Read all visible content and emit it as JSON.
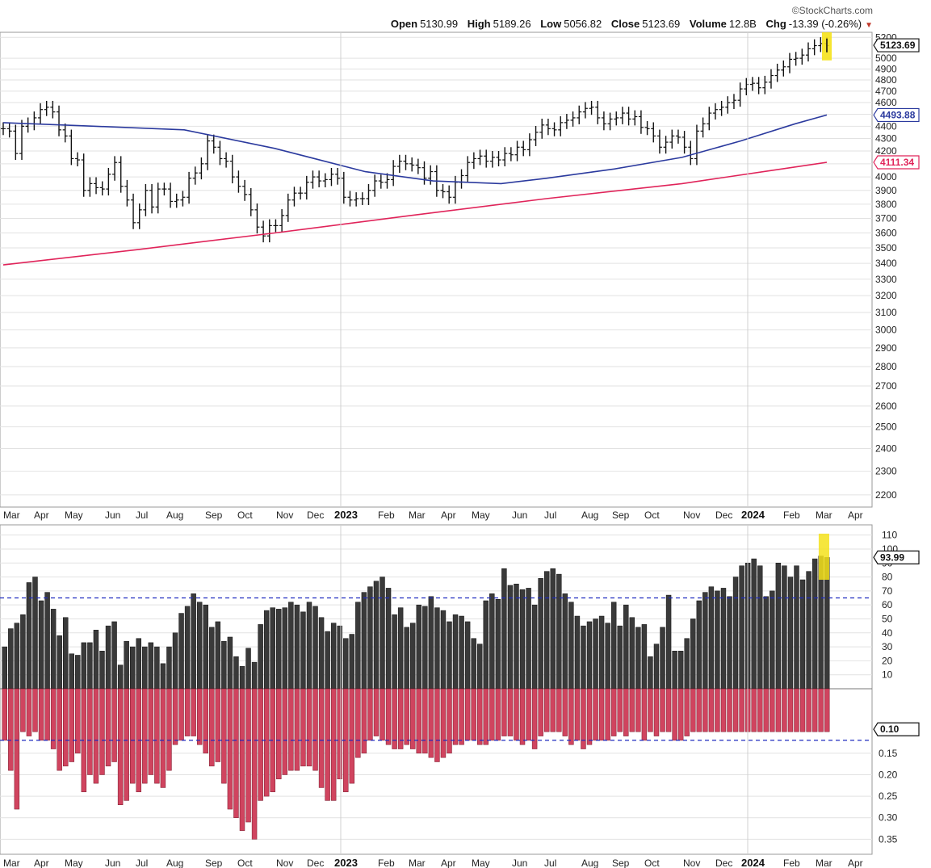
{
  "header": {
    "brand": "©StockCharts.com",
    "open_label": "Open",
    "open": "5130.99",
    "high_label": "High",
    "high": "5189.26",
    "low_label": "Low",
    "low": "5056.82",
    "close_label": "Close",
    "close": "5123.69",
    "volume_label": "Volume",
    "volume": "12.8B",
    "chg_label": "Chg",
    "chg": "-13.39 (-0.26%)"
  },
  "colors": {
    "bars": "#111111",
    "ma_blue": "#2b3a9e",
    "ma_red": "#e0245a",
    "up": "#3a3a3a",
    "down": "#d0445f",
    "highlight": "#f5e21b",
    "dashed": "#1f2bbf",
    "grid": "#e2e2e2"
  },
  "chart_data": [
    {
      "type": "line",
      "subtype": "ohlc-weekly",
      "title": "",
      "y_scale": "log",
      "ylim": [
        2150,
        5250
      ],
      "y_ticks": [
        2200,
        2300,
        2400,
        2500,
        2600,
        2700,
        2800,
        2900,
        3000,
        3100,
        3200,
        3300,
        3400,
        3500,
        3600,
        3700,
        3800,
        3900,
        4000,
        4100,
        4200,
        4300,
        4400,
        4500,
        4600,
        4700,
        4800,
        4900,
        5000,
        5200
      ],
      "price_close_weekly": [
        4380,
        4360,
        4180,
        4400,
        4420,
        4470,
        4540,
        4560,
        4520,
        4370,
        4320,
        4140,
        4130,
        3900,
        3950,
        3920,
        3910,
        4020,
        4110,
        3930,
        3830,
        3670,
        3760,
        3900,
        3780,
        3910,
        3910,
        3820,
        3830,
        3850,
        3990,
        4030,
        4100,
        4280,
        4230,
        4140,
        4120,
        4000,
        3930,
        3870,
        3760,
        3640,
        3580,
        3650,
        3650,
        3720,
        3830,
        3880,
        3880,
        3960,
        4000,
        3970,
        3980,
        4020,
        3990,
        3850,
        3830,
        3840,
        3840,
        3900,
        3970,
        3960,
        3980,
        4080,
        4120,
        4100,
        4090,
        4070,
        3990,
        4040,
        3900,
        3890,
        3850,
        3960,
        4010,
        4110,
        4140,
        4160,
        4120,
        4150,
        4130,
        4180,
        4170,
        4230,
        4210,
        4290,
        4350,
        4410,
        4380,
        4370,
        4430,
        4450,
        4470,
        4520,
        4550,
        4560,
        4470,
        4420,
        4460,
        4470,
        4510,
        4460,
        4480,
        4390,
        4380,
        4320,
        4230,
        4270,
        4320,
        4310,
        4230,
        4140,
        4360,
        4420,
        4510,
        4540,
        4560,
        4600,
        4620,
        4720,
        4760,
        4770,
        4730,
        4780,
        4840,
        4890,
        4920,
        4990,
        5000,
        5030,
        5090,
        5120,
        5140,
        5120
      ],
      "ma_50w_blue": {
        "name": "",
        "points": [
          [
            0,
            4430
          ],
          [
            20,
            4400
          ],
          [
            40,
            4370
          ],
          [
            60,
            4220
          ],
          [
            80,
            4040
          ],
          [
            95,
            3970
          ],
          [
            110,
            3950
          ],
          [
            120,
            3990
          ],
          [
            135,
            4060
          ],
          [
            150,
            4150
          ],
          [
            163,
            4280
          ],
          [
            175,
            4420
          ],
          [
            182,
            4493.88
          ]
        ]
      },
      "ma_200w_red": {
        "name": "",
        "points": [
          [
            0,
            3390
          ],
          [
            30,
            3490
          ],
          [
            60,
            3600
          ],
          [
            90,
            3720
          ],
          [
            120,
            3840
          ],
          [
            150,
            3950
          ],
          [
            170,
            4050
          ],
          [
            182,
            4111.34
          ]
        ]
      },
      "price_tags": {
        "close": "5123.69",
        "ma50": "4493.88",
        "ma200": "4111.34"
      }
    },
    {
      "type": "bar",
      "subtype": "up/down-ratio-indicator",
      "title": "",
      "ylim_top": [
        0,
        115
      ],
      "y_ticks_top": [
        10,
        20,
        30,
        40,
        50,
        60,
        70,
        80,
        90,
        100,
        110
      ],
      "y_ticks_bottom": [
        "0.15",
        "0.20",
        "0.25",
        "0.30",
        "0.35"
      ],
      "threshold_upper": 65,
      "threshold_lower": 0.12,
      "tags": {
        "upper": "93.99",
        "lower": "0.10"
      },
      "up_values": [
        30,
        43,
        47,
        53,
        76,
        80,
        63,
        69,
        57,
        38,
        51,
        25,
        24,
        33,
        33,
        42,
        27,
        45,
        48,
        17,
        34,
        30,
        36,
        30,
        33,
        30,
        18,
        30,
        40,
        54,
        59,
        68,
        62,
        60,
        44,
        48,
        34,
        37,
        23,
        16,
        29,
        19,
        46,
        56,
        58,
        57,
        58,
        62,
        60,
        55,
        62,
        59,
        51,
        41,
        47,
        45,
        36,
        39,
        62,
        69,
        73,
        77,
        80,
        72,
        53,
        58,
        44,
        47,
        60,
        59,
        66,
        58,
        56,
        48,
        53,
        52,
        48,
        36,
        32,
        63,
        68,
        64,
        86,
        74,
        75,
        71,
        72,
        60,
        79,
        84,
        86,
        82,
        68,
        62,
        52,
        45,
        48,
        50,
        52,
        47,
        62,
        45,
        60,
        51,
        44,
        46,
        23,
        32,
        44,
        67,
        27,
        27,
        36,
        50,
        63,
        69,
        73,
        70,
        72,
        66,
        80,
        88,
        90,
        93,
        88,
        66,
        70,
        90,
        88,
        80,
        88,
        78,
        84,
        93,
        95,
        93.99
      ],
      "down_values": [
        0.12,
        0.19,
        0.28,
        0.1,
        0.11,
        0.1,
        0.12,
        0.12,
        0.14,
        0.19,
        0.18,
        0.17,
        0.15,
        0.24,
        0.2,
        0.22,
        0.2,
        0.18,
        0.17,
        0.27,
        0.26,
        0.22,
        0.24,
        0.22,
        0.2,
        0.22,
        0.23,
        0.19,
        0.13,
        0.12,
        0.11,
        0.11,
        0.13,
        0.15,
        0.18,
        0.17,
        0.22,
        0.28,
        0.3,
        0.33,
        0.31,
        0.35,
        0.26,
        0.25,
        0.24,
        0.21,
        0.2,
        0.19,
        0.19,
        0.18,
        0.18,
        0.19,
        0.23,
        0.26,
        0.26,
        0.21,
        0.24,
        0.22,
        0.16,
        0.15,
        0.12,
        0.11,
        0.12,
        0.13,
        0.14,
        0.14,
        0.13,
        0.14,
        0.15,
        0.15,
        0.16,
        0.17,
        0.16,
        0.15,
        0.13,
        0.13,
        0.12,
        0.12,
        0.13,
        0.13,
        0.12,
        0.12,
        0.11,
        0.11,
        0.12,
        0.13,
        0.12,
        0.14,
        0.11,
        0.1,
        0.1,
        0.1,
        0.11,
        0.13,
        0.12,
        0.14,
        0.13,
        0.12,
        0.12,
        0.12,
        0.11,
        0.1,
        0.11,
        0.1,
        0.1,
        0.12,
        0.1,
        0.11,
        0.1,
        0.1,
        0.12,
        0.12,
        0.11,
        0.1,
        0.1,
        0.1,
        0.1,
        0.1,
        0.1,
        0.1,
        0.1,
        0.1,
        0.1,
        0.1,
        0.1,
        0.1,
        0.1,
        0.1,
        0.1,
        0.1,
        0.1,
        0.1,
        0.1,
        0.1,
        0.1,
        0.1
      ]
    }
  ],
  "x_axis": {
    "labels": [
      "Mar",
      "Apr",
      "May",
      "Jun",
      "Jul",
      "Aug",
      "Sep",
      "Oct",
      "Nov",
      "Dec",
      "2023",
      "Feb",
      "Mar",
      "Apr",
      "May",
      "Jun",
      "Jul",
      "Aug",
      "Sep",
      "Oct",
      "Nov",
      "Dec",
      "2024",
      "Feb",
      "Mar",
      "Apr"
    ],
    "years": [
      "2023",
      "2024"
    ]
  }
}
